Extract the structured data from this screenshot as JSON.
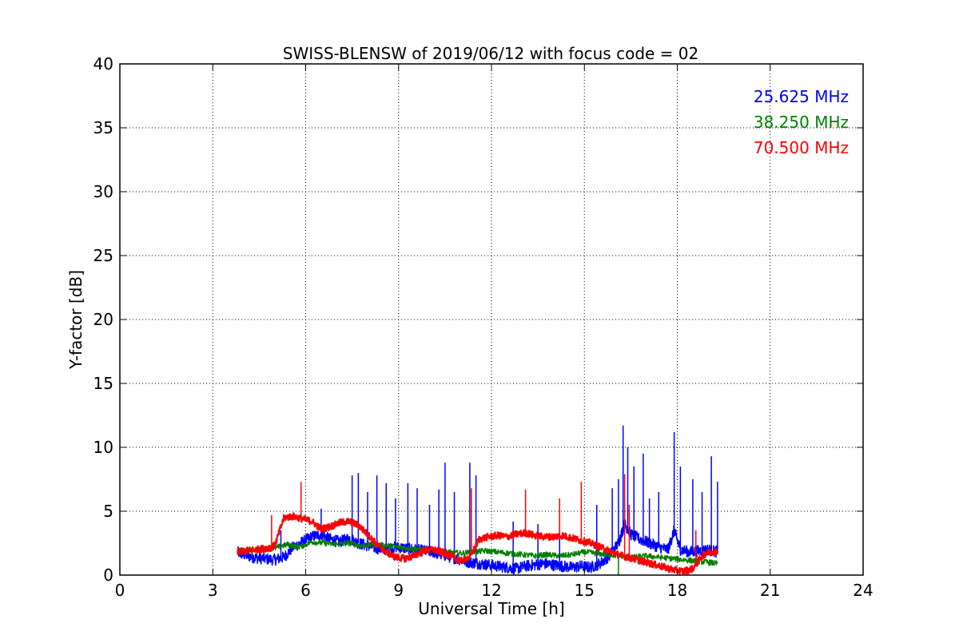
{
  "chart_data": {
    "type": "line",
    "title": "SWISS-BLENSW of 2019/06/12 with focus code = 02",
    "xlabel": "Universal Time [h]",
    "ylabel": "Y-factor [dB]",
    "xlim": [
      0,
      24
    ],
    "ylim": [
      0,
      40
    ],
    "xticks": [
      0,
      3,
      6,
      9,
      12,
      15,
      18,
      21,
      24
    ],
    "yticks": [
      0,
      5,
      10,
      15,
      20,
      25,
      30,
      35,
      40
    ],
    "grid": true,
    "legend_position": "top-right",
    "series": [
      {
        "name": "25.625 MHz",
        "color": "#0000ff",
        "x": [
          3.8,
          4.0,
          4.3,
          4.6,
          5.0,
          5.3,
          5.6,
          5.9,
          6.2,
          6.5,
          6.8,
          7.1,
          7.4,
          7.7,
          8.0,
          8.3,
          8.6,
          8.9,
          9.2,
          9.5,
          9.8,
          10.1,
          10.4,
          10.7,
          11.0,
          11.3,
          11.6,
          11.9,
          12.2,
          12.5,
          12.8,
          13.1,
          13.4,
          13.7,
          14.0,
          14.3,
          14.6,
          14.9,
          15.2,
          15.5,
          15.8,
          16.1,
          16.3,
          16.5,
          16.8,
          17.1,
          17.4,
          17.7,
          17.9,
          18.1,
          18.4,
          18.7,
          19.0,
          19.3
        ],
        "y": [
          1.8,
          1.6,
          1.4,
          1.3,
          1.2,
          1.4,
          2.2,
          2.6,
          3.0,
          3.2,
          2.8,
          2.6,
          2.9,
          2.5,
          2.3,
          2.1,
          2.0,
          2.2,
          2.1,
          2.0,
          1.9,
          1.8,
          1.6,
          1.4,
          1.2,
          1.0,
          0.9,
          0.8,
          0.7,
          0.6,
          0.5,
          0.7,
          0.8,
          0.9,
          0.8,
          0.7,
          0.6,
          0.7,
          0.6,
          0.9,
          1.5,
          2.5,
          4.0,
          3.2,
          2.8,
          2.5,
          2.2,
          2.0,
          3.5,
          2.0,
          1.8,
          1.9,
          2.0,
          1.8
        ]
      },
      {
        "name": "38.250 MHz",
        "color": "#008000",
        "x": [
          3.8,
          4.2,
          4.6,
          5.0,
          5.4,
          5.8,
          6.2,
          6.6,
          7.0,
          7.4,
          7.8,
          8.2,
          8.6,
          9.0,
          9.4,
          9.8,
          10.2,
          10.6,
          11.0,
          11.4,
          11.8,
          12.2,
          12.6,
          13.0,
          13.4,
          13.8,
          14.2,
          14.6,
          15.0,
          15.4,
          15.8,
          16.2,
          16.6,
          17.0,
          17.4,
          17.8,
          18.2,
          18.6,
          19.0,
          19.3
        ],
        "y": [
          1.9,
          2.0,
          2.0,
          2.1,
          2.4,
          2.2,
          2.6,
          2.5,
          2.4,
          2.5,
          2.3,
          2.4,
          2.3,
          2.2,
          2.1,
          2.0,
          1.9,
          1.8,
          1.7,
          1.8,
          1.9,
          1.8,
          1.7,
          1.6,
          1.5,
          1.6,
          1.5,
          1.6,
          1.8,
          1.7,
          1.6,
          1.5,
          1.4,
          1.5,
          1.4,
          1.3,
          1.2,
          1.1,
          1.0,
          0.9
        ]
      },
      {
        "name": "70.500 MHz",
        "color": "#ff0000",
        "x": [
          3.8,
          4.1,
          4.4,
          4.7,
          5.0,
          5.3,
          5.6,
          5.9,
          6.2,
          6.5,
          6.8,
          7.1,
          7.4,
          7.7,
          8.0,
          8.3,
          8.6,
          8.9,
          9.2,
          9.5,
          9.8,
          10.1,
          10.4,
          10.7,
          11.0,
          11.3,
          11.6,
          11.9,
          12.2,
          12.5,
          12.8,
          13.1,
          13.4,
          13.7,
          14.0,
          14.3,
          14.6,
          14.9,
          15.2,
          15.5,
          15.8,
          16.1,
          16.4,
          16.7,
          17.0,
          17.3,
          17.6,
          17.9,
          18.2,
          18.5,
          18.8,
          19.0,
          19.3
        ],
        "y": [
          1.8,
          1.9,
          2.0,
          2.1,
          2.3,
          4.5,
          4.6,
          4.4,
          4.2,
          3.6,
          3.8,
          4.1,
          4.2,
          3.9,
          3.2,
          2.4,
          1.8,
          1.4,
          1.3,
          1.5,
          1.9,
          2.0,
          1.8,
          1.5,
          1.1,
          1.4,
          2.8,
          3.0,
          3.1,
          3.0,
          3.2,
          3.3,
          3.1,
          3.0,
          3.0,
          3.1,
          2.9,
          2.7,
          2.5,
          2.2,
          1.9,
          1.6,
          1.4,
          1.2,
          1.0,
          0.8,
          0.6,
          0.4,
          0.3,
          0.5,
          1.5,
          1.8,
          1.9
        ]
      }
    ],
    "spikes": [
      {
        "series": "25.625 MHz",
        "x": [
          5.2,
          6.5,
          7.5,
          7.7,
          8.0,
          8.3,
          8.6,
          8.9,
          9.3,
          9.6,
          10.0,
          10.3,
          10.5,
          10.8,
          11.3,
          11.5,
          12.7,
          13.5,
          14.2,
          15.4,
          15.9,
          16.1,
          16.25,
          16.4,
          16.6,
          16.9,
          17.1,
          17.4,
          17.9,
          18.1,
          18.5,
          18.8,
          19.1,
          19.3
        ],
        "y": [
          3.5,
          5.2,
          7.8,
          8.0,
          6.5,
          7.8,
          7.2,
          6.0,
          7.2,
          6.8,
          5.5,
          6.7,
          8.8,
          6.5,
          8.8,
          7.8,
          4.2,
          4.0,
          4.5,
          5.5,
          6.8,
          7.5,
          11.7,
          10.0,
          8.5,
          9.5,
          6.0,
          6.5,
          11.2,
          8.5,
          7.5,
          6.5,
          9.3,
          7.3
        ]
      },
      {
        "series": "38.250 MHz",
        "x": [
          16.1
        ],
        "y": [
          0.0
        ]
      },
      {
        "series": "70.500 MHz",
        "x": [
          4.9,
          5.85,
          11.35,
          13.1,
          14.2,
          14.9,
          16.3,
          16.45,
          18.6
        ],
        "y": [
          4.7,
          7.3,
          6.8,
          6.7,
          6.0,
          7.3,
          7.9,
          5.5,
          3.5
        ]
      }
    ]
  }
}
